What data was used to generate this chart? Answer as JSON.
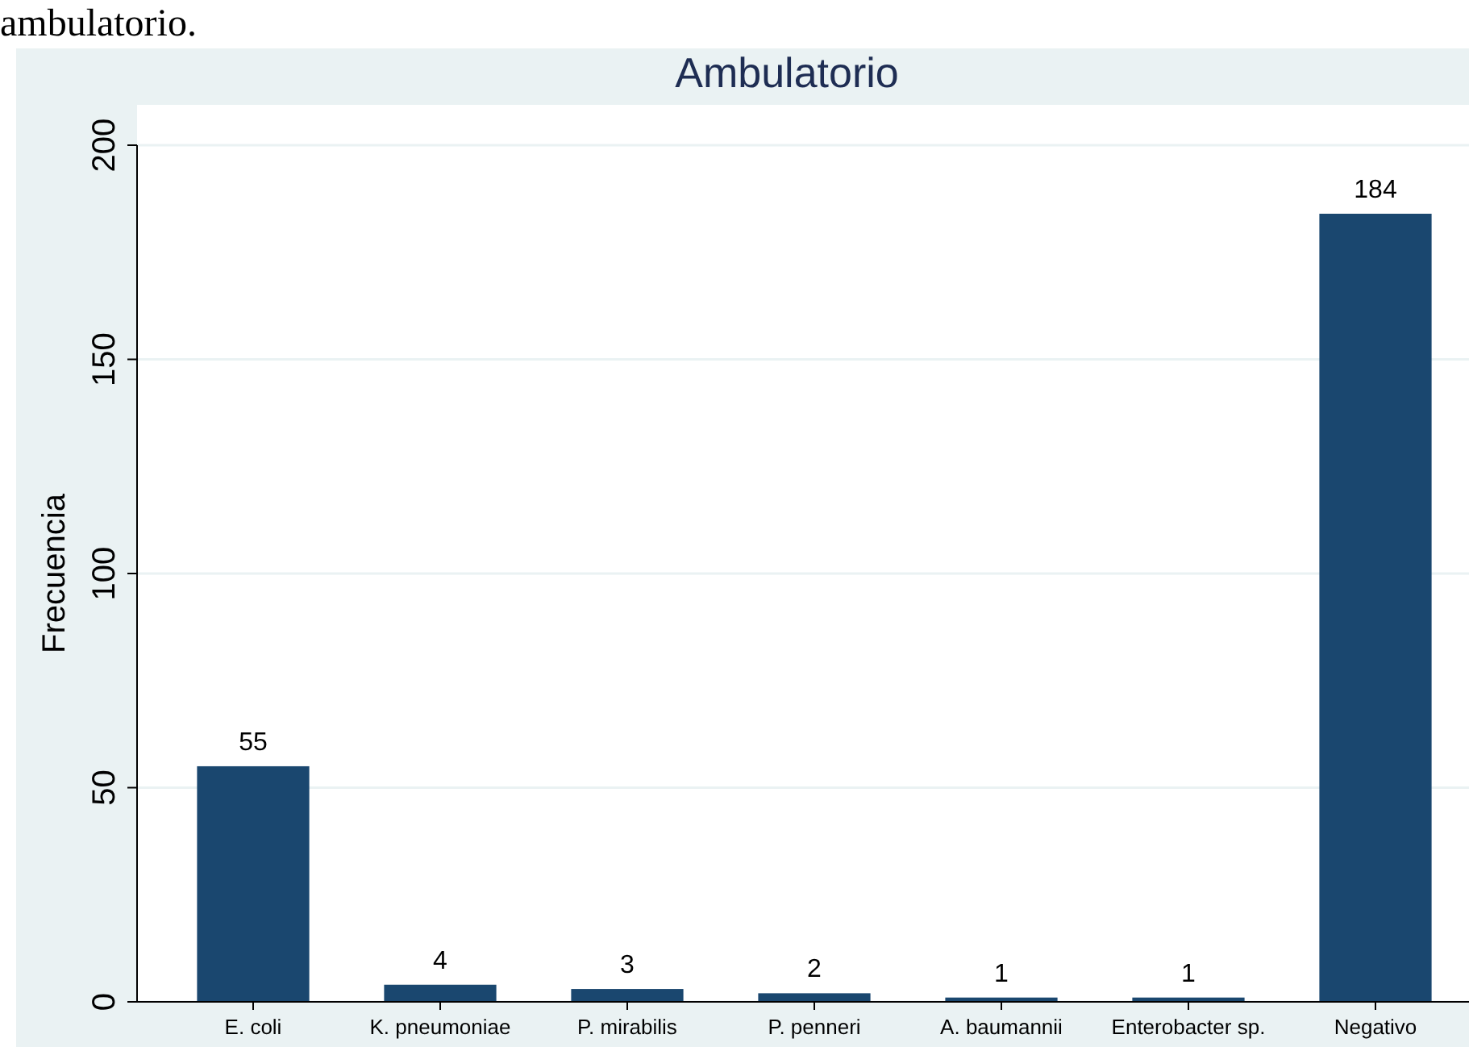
{
  "chart_data": {
    "type": "bar",
    "title": "Ambulatorio",
    "ylabel": "Frecuencia",
    "categories": [
      "E. coli",
      "K. pneumoniae",
      "P. mirabilis",
      "P. penneri",
      "A. baumannii",
      "Enterobacter sp.",
      "Negativo"
    ],
    "values": [
      55,
      4,
      3,
      2,
      1,
      1,
      184
    ],
    "color": "#1a476f",
    "data_labels": true,
    "ylim": [
      0,
      200
    ],
    "yticks": [
      0,
      50,
      100,
      150,
      200
    ],
    "grid": "y",
    "annotations": [
      "ambulatorio."
    ]
  }
}
